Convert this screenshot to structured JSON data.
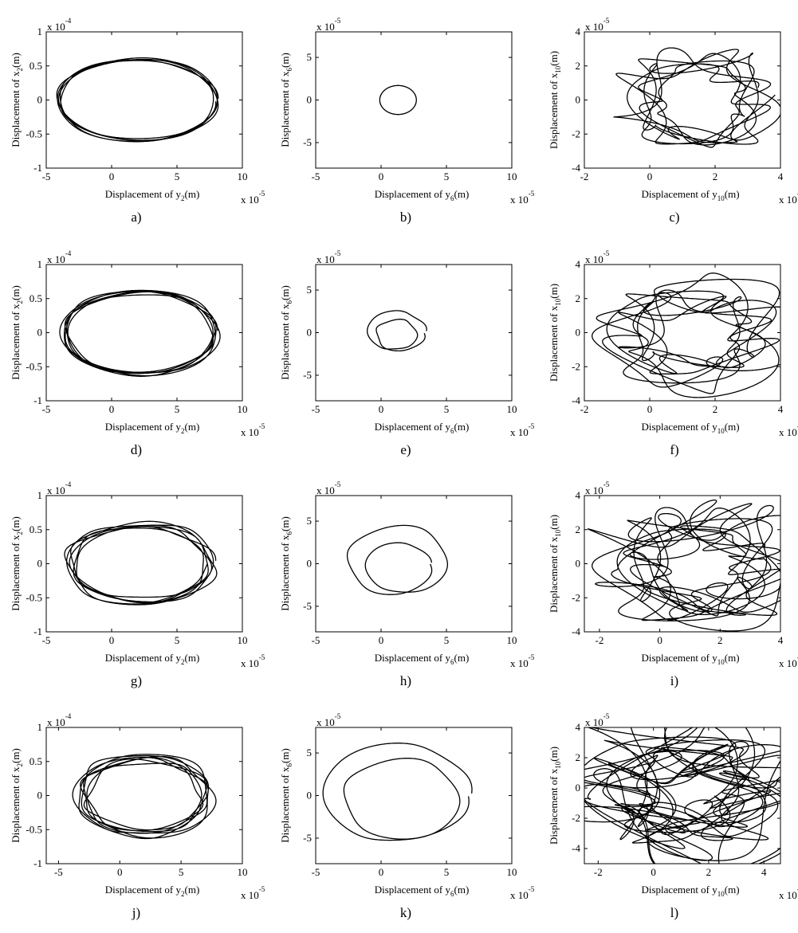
{
  "figure": {
    "panels": [
      {
        "letter": "a)",
        "xlabel": "Displacement of y",
        "xsub": "2",
        "ylabel": "Displacement of x",
        "ysub": "2",
        "unit": "(m)",
        "xmult": "x 10",
        "xexp": "-5",
        "ymult": "x 10",
        "yexp": "-4"
      },
      {
        "letter": "b)",
        "xlabel": "Displacement of y",
        "xsub": "6",
        "ylabel": "Displacement of x",
        "ysub": "6",
        "unit": "(m)",
        "xmult": "x 10",
        "xexp": "-5",
        "ymult": "x 10",
        "yexp": "-5"
      },
      {
        "letter": "c)",
        "xlabel": "Displacement of y",
        "xsub": "10",
        "ylabel": "Displacement of x",
        "ysub": "10",
        "unit": "(m)",
        "xmult": "x 10",
        "xexp": "-5",
        "ymult": "x 10",
        "yexp": "-5"
      },
      {
        "letter": "d)",
        "xlabel": "Displacement of y",
        "xsub": "2",
        "ylabel": "Displacement of x",
        "ysub": "2",
        "unit": "(m)",
        "xmult": "x 10",
        "xexp": "-5",
        "ymult": "x 10",
        "yexp": "-4"
      },
      {
        "letter": "e)",
        "xlabel": "Displacement of y",
        "xsub": "6",
        "ylabel": "Displacement of x",
        "ysub": "6",
        "unit": "(m)",
        "xmult": "x 10",
        "xexp": "-5",
        "ymult": "x 10",
        "yexp": "-5"
      },
      {
        "letter": "f)",
        "xlabel": "Displacement of y",
        "xsub": "10",
        "ylabel": "Displacement of x",
        "ysub": "10",
        "unit": "(m)",
        "xmult": "x 10",
        "xexp": "-5",
        "ymult": "x 10",
        "yexp": "-5"
      },
      {
        "letter": "g)",
        "xlabel": "Displacement of y",
        "xsub": "2",
        "ylabel": "Displacement of x",
        "ysub": "2",
        "unit": "(m)",
        "xmult": "x 10",
        "xexp": "-5",
        "ymult": "x 10",
        "yexp": "-4"
      },
      {
        "letter": "h)",
        "xlabel": "Displacement of y",
        "xsub": "6",
        "ylabel": "Displacement of x",
        "ysub": "6",
        "unit": "(m)",
        "xmult": "x 10",
        "xexp": "-5",
        "ymult": "x 10",
        "yexp": "-5"
      },
      {
        "letter": "i)",
        "xlabel": "Displacement of y",
        "xsub": "10",
        "ylabel": "Displacement of x",
        "ysub": "10",
        "unit": "(m)",
        "xmult": "x 10",
        "xexp": "-5",
        "ymult": "x 10",
        "yexp": "-5"
      },
      {
        "letter": "j)",
        "xlabel": "Displacement of y",
        "xsub": "2",
        "ylabel": "Displacement of x",
        "ysub": "2",
        "unit": "(m)",
        "xmult": "x 10",
        "xexp": "-5",
        "ymult": "x 10",
        "yexp": "-4"
      },
      {
        "letter": "k)",
        "xlabel": "Displacement of y",
        "xsub": "6",
        "ylabel": "Displacement of x",
        "ysub": "6",
        "unit": "(m)",
        "xmult": "x 10",
        "xexp": "-5",
        "ymult": "x 10",
        "yexp": "-5"
      },
      {
        "letter": "l)",
        "xlabel": "Displacement of y",
        "xsub": "10",
        "ylabel": "Displacement of x",
        "ysub": "10",
        "unit": "(m)",
        "xmult": "x 10",
        "xexp": "-5",
        "ymult": "x 10",
        "yexp": "-5"
      }
    ]
  },
  "chart_data": [
    {
      "type": "line",
      "panel": "a)",
      "xlim": [
        -5,
        10
      ],
      "ylim": [
        -1,
        1
      ],
      "xticks": [
        "-5",
        "0",
        "5",
        "10"
      ],
      "yticks": [
        "-1",
        "-0.5",
        "0",
        "0.5",
        "1"
      ],
      "grid": false,
      "orbit": {
        "cx": 2.0,
        "cy": 0.0,
        "rx": 6.2,
        "ry": 0.61,
        "loops": 4,
        "spread": 0.045,
        "wobble": 0.02,
        "turns": 5
      }
    },
    {
      "type": "line",
      "panel": "b)",
      "xlim": [
        -5,
        10
      ],
      "ylim": [
        -8,
        8
      ],
      "xticks": [
        "-5",
        "0",
        "5",
        "10"
      ],
      "yticks": [
        "-5",
        "0",
        "5"
      ],
      "grid": false,
      "orbit": {
        "cx": 1.3,
        "cy": 0.0,
        "rx": 1.4,
        "ry": 1.7,
        "loops": 1,
        "spread": 0.0,
        "wobble": 0.0,
        "turns": 1
      }
    },
    {
      "type": "line",
      "panel": "c)",
      "xlim": [
        -2,
        4
      ],
      "ylim": [
        -4,
        4
      ],
      "xticks": [
        "-2",
        "0",
        "2",
        "4"
      ],
      "yticks": [
        "-4",
        "-2",
        "0",
        "2",
        "4"
      ],
      "grid": false,
      "orbit": {
        "cx": 1.5,
        "cy": 0.0,
        "rx": 2.0,
        "ry": 2.6,
        "loops": 5,
        "spread": 0.25,
        "wobble": 0.25,
        "turns": 7
      }
    },
    {
      "type": "line",
      "panel": "d)",
      "xlim": [
        -5,
        10
      ],
      "ylim": [
        -1,
        1
      ],
      "xticks": [
        "-5",
        "0",
        "5",
        "10"
      ],
      "yticks": [
        "-1",
        "-0.5",
        "0",
        "0.5",
        "1"
      ],
      "grid": false,
      "orbit": {
        "cx": 2.2,
        "cy": 0.0,
        "rx": 6.0,
        "ry": 0.62,
        "loops": 5,
        "spread": 0.07,
        "wobble": 0.03,
        "turns": 6
      }
    },
    {
      "type": "line",
      "panel": "e)",
      "xlim": [
        -5,
        10
      ],
      "ylim": [
        -8,
        8
      ],
      "xticks": [
        "-5",
        "0",
        "5",
        "10"
      ],
      "yticks": [
        "-5",
        "0",
        "5"
      ],
      "grid": false,
      "orbit": {
        "cx": 1.2,
        "cy": 0.0,
        "rx": 2.3,
        "ry": 2.6,
        "loops": 2,
        "spread": 0.4,
        "wobble": 0.05,
        "turns": 2
      }
    },
    {
      "type": "line",
      "panel": "f)",
      "xlim": [
        -2,
        4
      ],
      "ylim": [
        -4,
        4
      ],
      "xticks": [
        "-2",
        "0",
        "2",
        "4"
      ],
      "yticks": [
        "-4",
        "-2",
        "0",
        "2",
        "4"
      ],
      "grid": false,
      "orbit": {
        "cx": 1.3,
        "cy": -0.1,
        "rx": 2.3,
        "ry": 2.7,
        "loops": 6,
        "spread": 0.3,
        "wobble": 0.3,
        "turns": 8
      }
    },
    {
      "type": "line",
      "panel": "g)",
      "xlim": [
        -5,
        10
      ],
      "ylim": [
        -1,
        1
      ],
      "xticks": [
        "-5",
        "0",
        "5",
        "10"
      ],
      "yticks": [
        "-1",
        "-0.5",
        "0",
        "0.5",
        "1"
      ],
      "grid": false,
      "orbit": {
        "cx": 2.2,
        "cy": 0.0,
        "rx": 5.8,
        "ry": 0.6,
        "loops": 5,
        "spread": 0.12,
        "wobble": 0.05,
        "turns": 6
      }
    },
    {
      "type": "line",
      "panel": "h)",
      "xlim": [
        -5,
        10
      ],
      "ylim": [
        -8,
        8
      ],
      "xticks": [
        "-5",
        "0",
        "5",
        "10"
      ],
      "yticks": [
        "-5",
        "0",
        "5"
      ],
      "grid": false,
      "orbit": {
        "cx": 1.3,
        "cy": 0.0,
        "rx": 4.0,
        "ry": 4.5,
        "loops": 2,
        "spread": 0.45,
        "wobble": 0.03,
        "turns": 2
      }
    },
    {
      "type": "line",
      "panel": "i)",
      "xlim": [
        -2.5,
        4
      ],
      "ylim": [
        -4,
        4
      ],
      "xticks": [
        "-2",
        "0",
        "2",
        "4"
      ],
      "yticks": [
        "-4",
        "-2",
        "0",
        "2",
        "4"
      ],
      "grid": false,
      "orbit": {
        "cx": 1.3,
        "cy": -0.1,
        "rx": 2.6,
        "ry": 3.0,
        "loops": 7,
        "spread": 0.35,
        "wobble": 0.35,
        "turns": 10
      }
    },
    {
      "type": "line",
      "panel": "j)",
      "xlim": [
        -6,
        10
      ],
      "ylim": [
        -1,
        1
      ],
      "xticks": [
        "-5",
        "0",
        "5",
        "10"
      ],
      "yticks": [
        "-1",
        "-0.5",
        "0",
        "0.5",
        "1"
      ],
      "grid": false,
      "orbit": {
        "cx": 2.0,
        "cy": 0.0,
        "rx": 5.6,
        "ry": 0.6,
        "loops": 6,
        "spread": 0.16,
        "wobble": 0.06,
        "turns": 7
      }
    },
    {
      "type": "line",
      "panel": "k)",
      "xlim": [
        -5,
        10
      ],
      "ylim": [
        -8,
        8
      ],
      "xticks": [
        "-5",
        "0",
        "5",
        "10"
      ],
      "yticks": [
        "-5",
        "0",
        "5"
      ],
      "grid": false,
      "orbit": {
        "cx": 1.4,
        "cy": 0.0,
        "rx": 5.8,
        "ry": 6.2,
        "loops": 2,
        "spread": 0.3,
        "wobble": 0.03,
        "turns": 2
      }
    },
    {
      "type": "line",
      "panel": "l)",
      "xlim": [
        -2.5,
        4.6
      ],
      "ylim": [
        -5,
        4
      ],
      "xticks": [
        "-2",
        "0",
        "2",
        "4"
      ],
      "yticks": [
        "-4",
        "-2",
        "0",
        "2",
        "4"
      ],
      "grid": false,
      "orbit": {
        "cx": 1.2,
        "cy": -0.2,
        "rx": 3.0,
        "ry": 3.6,
        "loops": 9,
        "spread": 0.4,
        "wobble": 0.45,
        "turns": 14
      }
    }
  ]
}
